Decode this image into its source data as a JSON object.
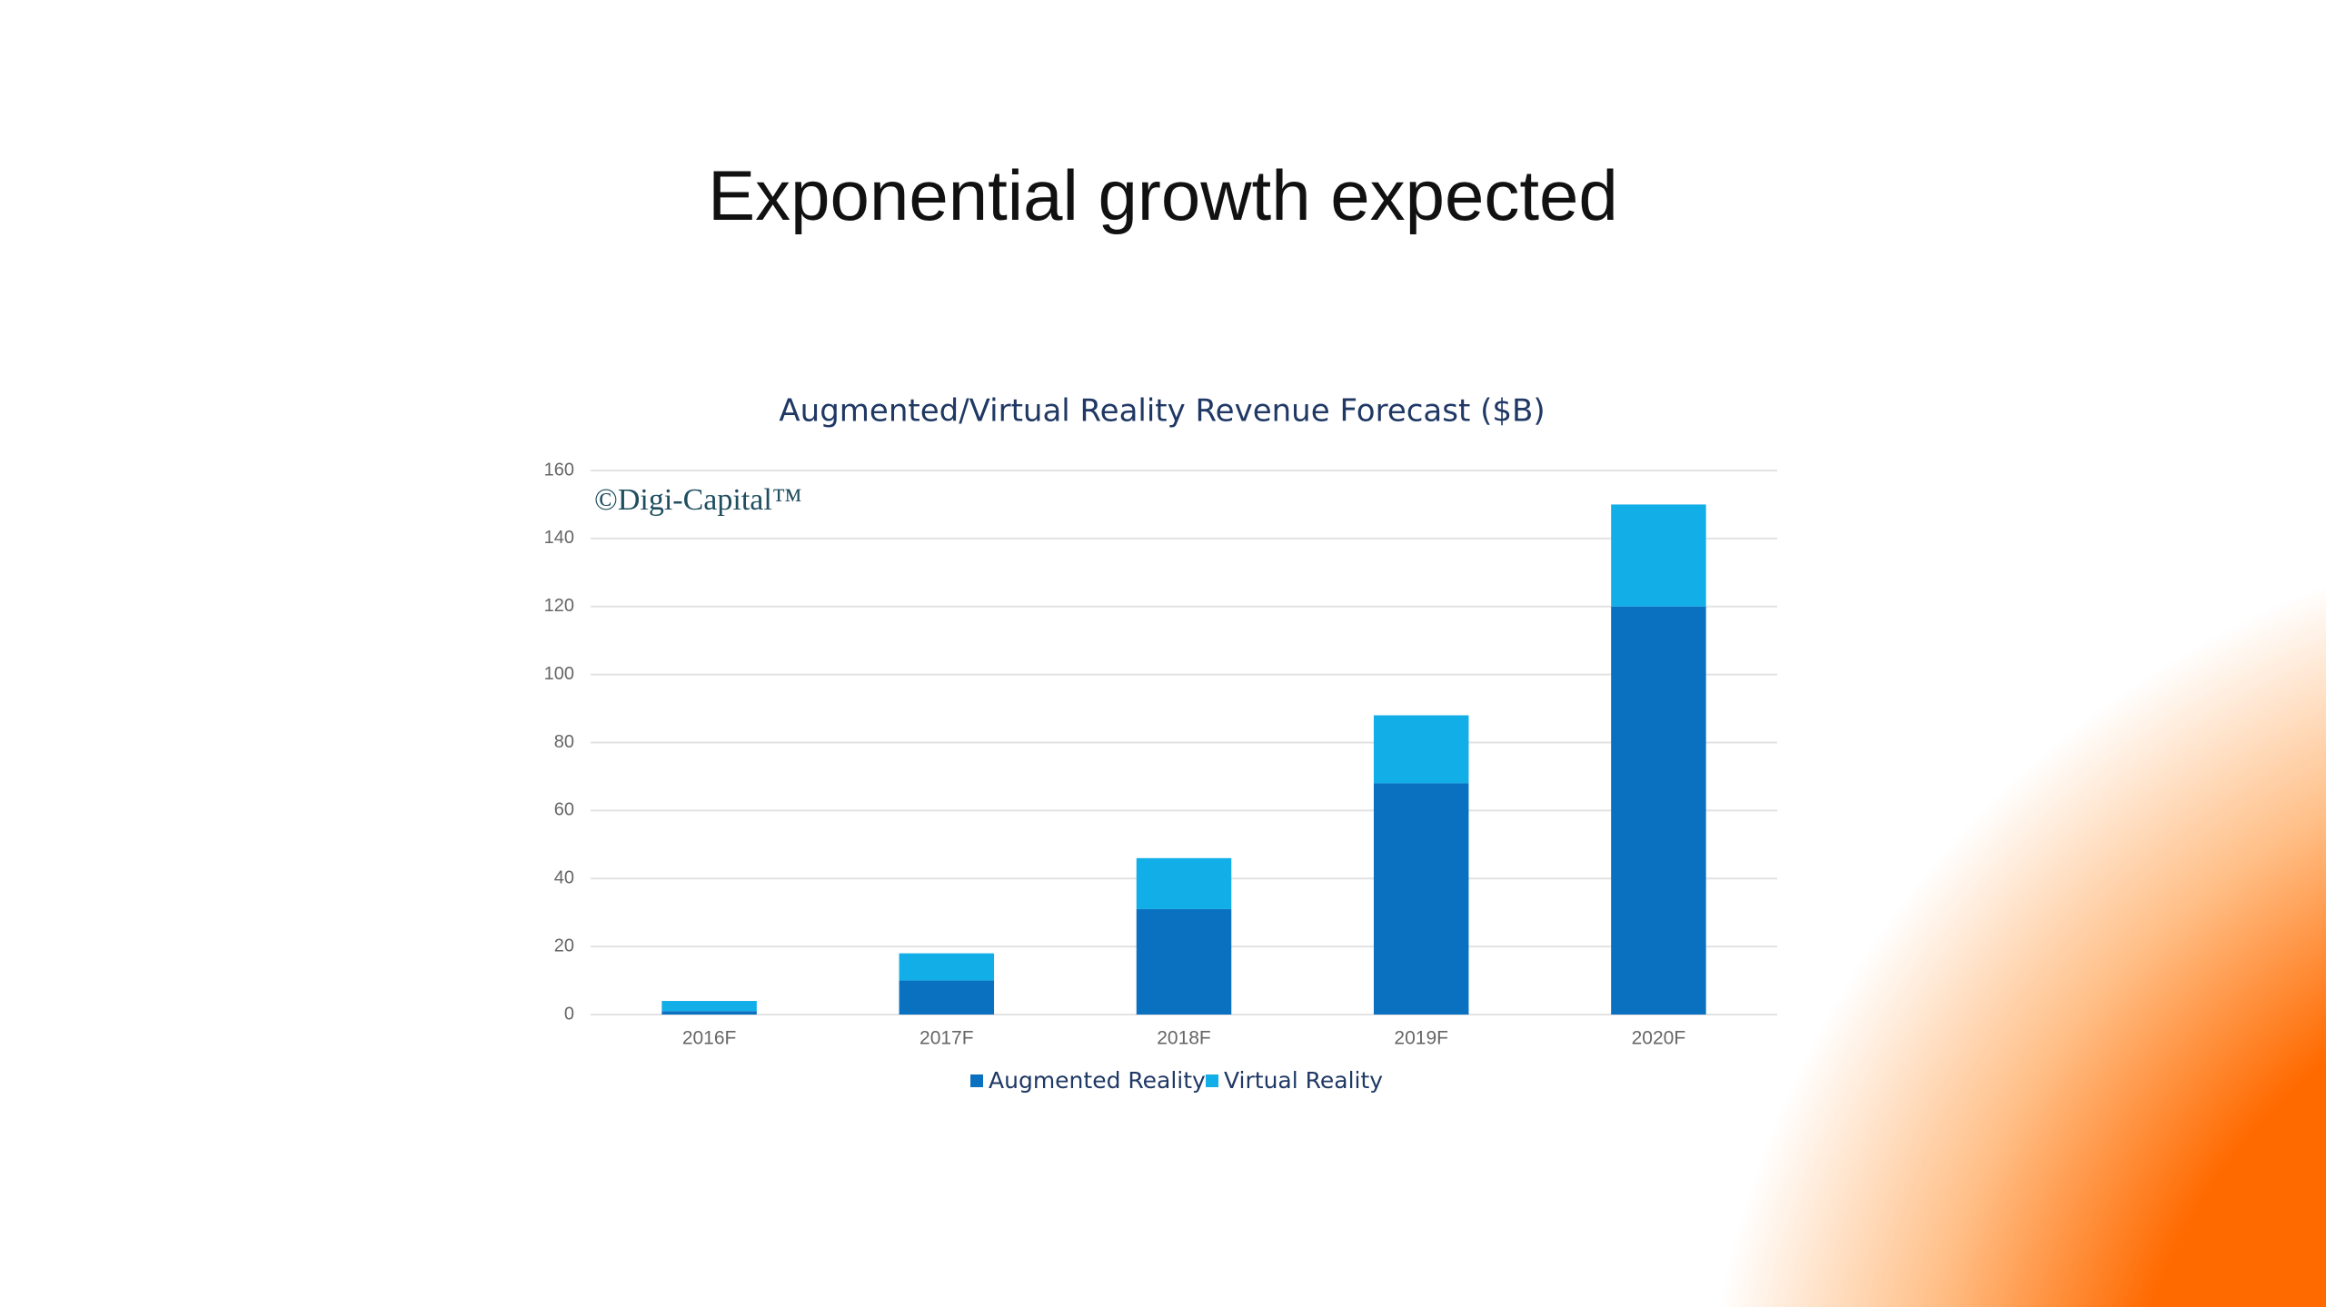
{
  "slide_title": "Exponential growth expected",
  "chart_data": {
    "type": "stacked-bar",
    "title": "Augmented/Virtual Reality Revenue Forecast ($B)",
    "watermark": "©Digi-Capital™",
    "categories": [
      "2016F",
      "2017F",
      "2018F",
      "2019F",
      "2020F"
    ],
    "series": [
      {
        "name": "Augmented Reality",
        "color": "#0a70c0",
        "values": [
          1,
          10,
          31,
          68,
          120
        ]
      },
      {
        "name": "Virtual Reality",
        "color": "#12aee8",
        "values": [
          3,
          8,
          15,
          20,
          30
        ]
      }
    ],
    "ylim": [
      0,
      160
    ],
    "yticks": [
      0,
      20,
      40,
      60,
      80,
      100,
      120,
      140,
      160
    ],
    "grid": true,
    "legend": "bottom"
  }
}
